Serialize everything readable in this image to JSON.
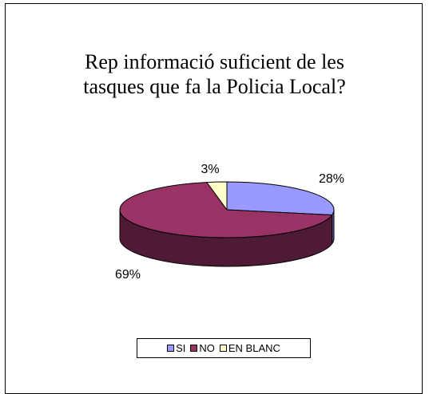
{
  "chart_data": {
    "type": "pie",
    "title_lines": [
      "Rep informació suficient de les",
      "tasques que fa la Policia Local?"
    ],
    "slices": [
      {
        "label": "SI",
        "value": 28,
        "data_label": "28%",
        "color": "#9999FF",
        "side_color": "#5C5C99"
      },
      {
        "label": "NO",
        "value": 69,
        "data_label": "69%",
        "color": "#993366",
        "side_color": "#4F1A35"
      },
      {
        "label": "EN BLANC",
        "value": 3,
        "data_label": "3%",
        "color": "#FFFFCC",
        "side_color": "#99997A"
      }
    ],
    "legend_position": "bottom",
    "three_d": true
  }
}
